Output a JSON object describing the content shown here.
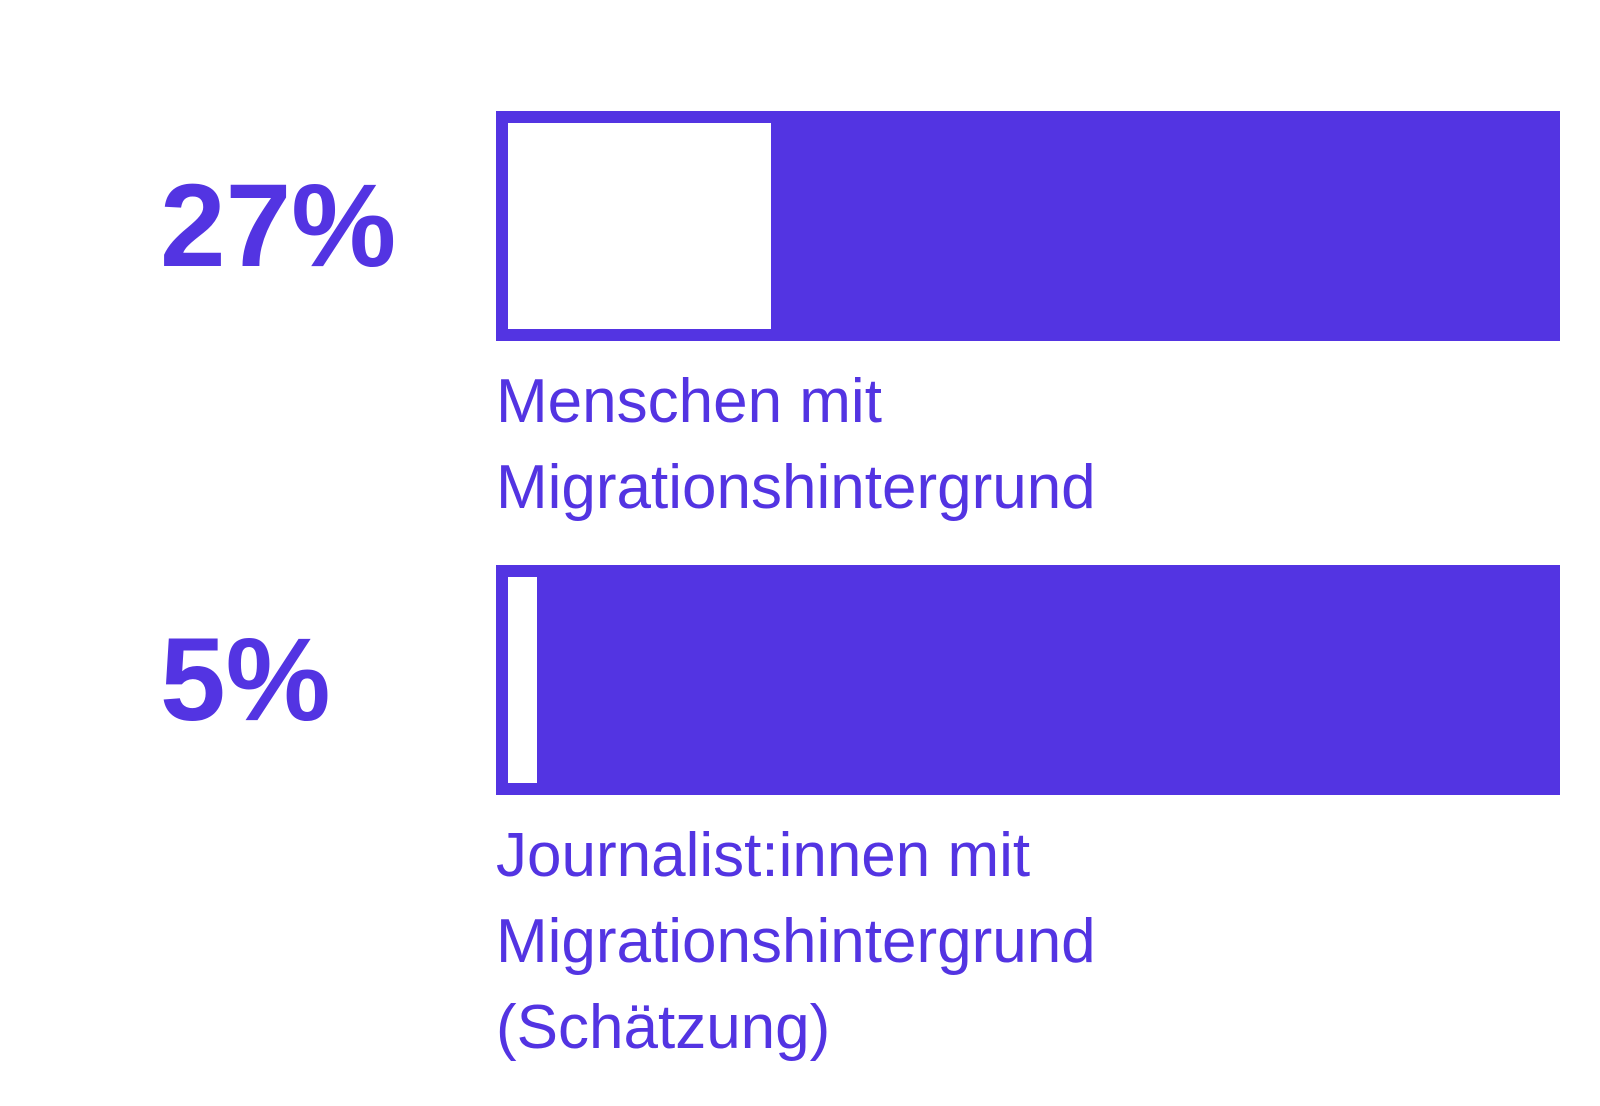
{
  "chart_data": {
    "type": "bar",
    "categories": [
      "Menschen mit Migrationshintergrund",
      "Journalist:innen mit Migrationshintergrund (Schätzung)"
    ],
    "values": [
      27,
      5
    ],
    "value_labels": [
      "27%",
      "5%"
    ],
    "xlim": [
      0,
      100
    ],
    "color": "#5334e2"
  }
}
